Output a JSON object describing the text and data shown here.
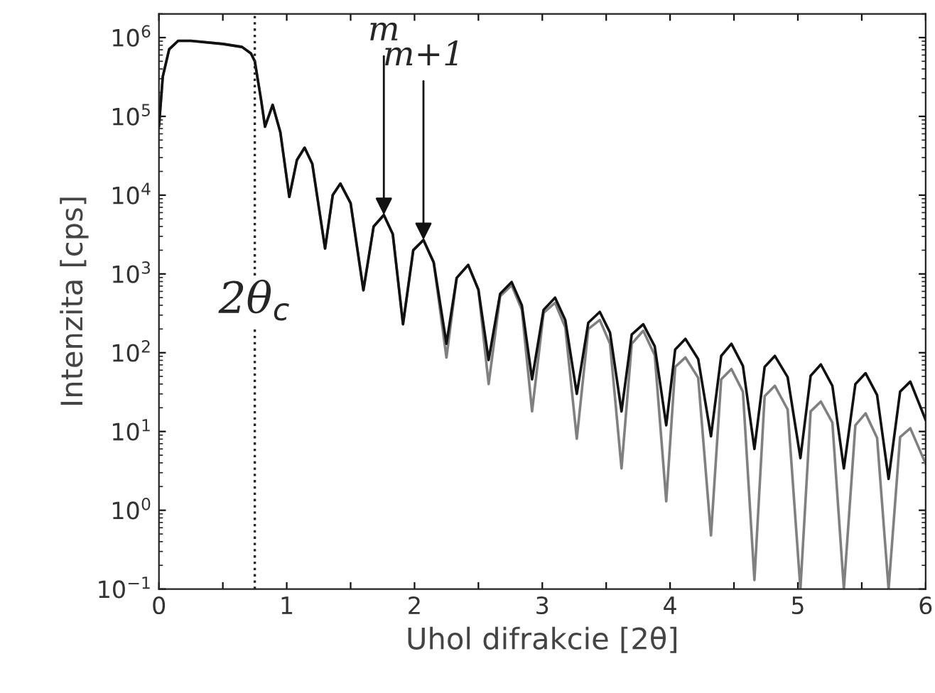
{
  "chart_data": {
    "type": "line",
    "xlabel": "Uhol difrakcie [2θ]",
    "ylabel": "Intenzita [cps]",
    "x": [
      0.0,
      0.03,
      0.08,
      0.15,
      0.25,
      0.5,
      0.65,
      0.72,
      0.75,
      0.8,
      0.83,
      0.89,
      0.95,
      1.02,
      1.08,
      1.14,
      1.2,
      1.3,
      1.36,
      1.42,
      1.5,
      1.6,
      1.68,
      1.76,
      1.83,
      1.91,
      1.99,
      2.07,
      2.15,
      2.25,
      2.33,
      2.42,
      2.5,
      2.58,
      2.67,
      2.76,
      2.84,
      2.92,
      3.01,
      3.1,
      3.18,
      3.27,
      3.36,
      3.45,
      3.53,
      3.62,
      3.7,
      3.79,
      3.88,
      3.97,
      4.04,
      4.12,
      4.22,
      4.32,
      4.4,
      4.48,
      4.57,
      4.66,
      4.74,
      4.82,
      4.92,
      5.02,
      5.1,
      5.18,
      5.27,
      5.36,
      5.45,
      5.53,
      5.62,
      5.71,
      5.8,
      5.88,
      6.0
    ],
    "series": [
      {
        "color": "#808080",
        "values": [
          74000,
          320000,
          710000,
          910000,
          910000,
          830000,
          760000,
          630000,
          500000,
          160000,
          74000,
          140000,
          63000,
          9500,
          28000,
          40000,
          25000,
          2100,
          10000,
          14000,
          7900,
          620,
          4000,
          5600,
          3200,
          230,
          2000,
          2700,
          1400,
          87,
          890,
          1300,
          630,
          40,
          520,
          720,
          350,
          18,
          320,
          430,
          210,
          8.1,
          200,
          260,
          130,
          3.4,
          130,
          190,
          93,
          1.3,
          66,
          87,
          48,
          0.48,
          46,
          62,
          32,
          0.13,
          28,
          38,
          19,
          0.1,
          18,
          24,
          13,
          0.1,
          12,
          17,
          8.3,
          0.1,
          8.5,
          11,
          3.9
        ]
      },
      {
        "color": "#111111",
        "values": [
          74000,
          320000,
          710000,
          910000,
          910000,
          830000,
          760000,
          630000,
          500000,
          160000,
          74000,
          140000,
          63000,
          9500,
          28000,
          40000,
          25000,
          2100,
          10000,
          14000,
          7900,
          620,
          4000,
          5600,
          3200,
          230,
          2000,
          2700,
          1400,
          130,
          890,
          1300,
          630,
          81,
          560,
          790,
          400,
          46,
          350,
          500,
          260,
          30,
          240,
          330,
          180,
          18,
          170,
          230,
          120,
          12,
          110,
          150,
          83,
          8.7,
          91,
          130,
          68,
          6.0,
          66,
          91,
          49,
          4.6,
          51,
          71,
          38,
          3.4,
          40,
          55,
          29,
          2.5,
          32,
          43,
          14
        ]
      }
    ],
    "log": "y",
    "xlim": [
      0,
      6
    ],
    "ylim": [
      0.1,
      2000000
    ],
    "xticks": [
      0,
      {
        "value": 0.5,
        "label": null
      },
      1,
      {
        "value": 1.5,
        "label": null
      },
      2,
      {
        "value": 2.5,
        "label": null
      },
      3,
      {
        "value": 3.5,
        "label": null
      },
      4,
      {
        "value": 4.5,
        "label": null
      },
      5,
      {
        "value": 5.5,
        "label": null
      },
      6
    ],
    "yticks": [
      {
        "value": 0.1,
        "label": "10$^{−1}$"
      },
      {
        "value": 1,
        "label": "10$^{0}$"
      },
      {
        "value": 10,
        "label": "10$^{1}$"
      },
      {
        "value": 100,
        "label": "10$^{2}$"
      },
      {
        "value": 1000,
        "label": "10$^{3}$"
      },
      {
        "value": 10000,
        "label": "10$^{4}$"
      },
      {
        "value": 100000,
        "label": "10$^{5}$"
      },
      {
        "value": 1000000,
        "label": "10$^{6}$"
      }
    ],
    "ref_lines": [
      {
        "axis": "x",
        "value": 0.75,
        "label": "2θ$_{c}$",
        "color": "#222222",
        "line_style": "dotted"
      }
    ],
    "annotations": [
      {
        "text": "m",
        "x": 1.76,
        "y": 5600
      },
      {
        "text": "m+1",
        "x": 2.07,
        "y": 2700
      }
    ],
    "grid": false,
    "legend": false
  }
}
